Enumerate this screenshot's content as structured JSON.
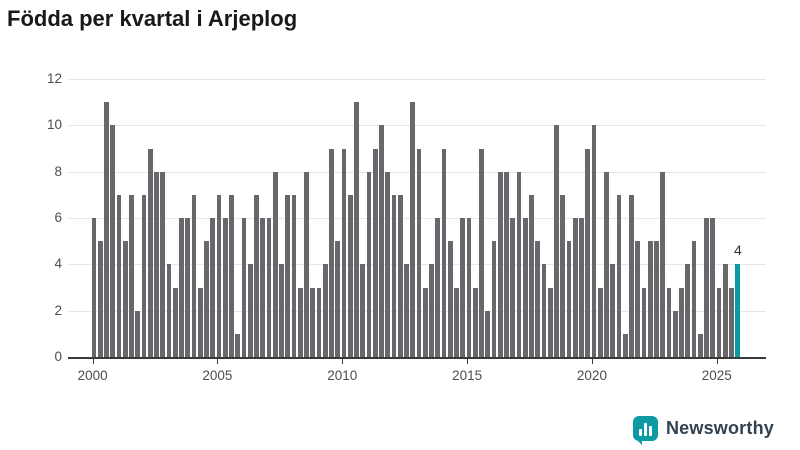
{
  "title": "Födda per kvartal i Arjeplog",
  "chart_data": {
    "type": "bar",
    "x_start": "2000-Q1",
    "x_end": "2025-Q4",
    "frequency": "quarterly",
    "x_tick_labels": [
      "2000",
      "2005",
      "2010",
      "2015",
      "2020",
      "2025"
    ],
    "y_ticks": [
      0,
      2,
      4,
      6,
      8,
      10,
      12
    ],
    "ylim": [
      0,
      12
    ],
    "grid": true,
    "legend": false,
    "bar_color": "#67686c",
    "highlight_color": "#0d9aa2",
    "series": [
      {
        "name": "Födda per kvartal",
        "values": [
          6,
          5,
          11,
          10,
          7,
          5,
          7,
          2,
          7,
          9,
          8,
          8,
          4,
          3,
          6,
          6,
          7,
          3,
          5,
          6,
          7,
          6,
          7,
          1,
          6,
          4,
          7,
          6,
          6,
          8,
          4,
          7,
          7,
          3,
          8,
          3,
          3,
          4,
          9,
          5,
          9,
          7,
          11,
          4,
          8,
          9,
          10,
          8,
          7,
          7,
          4,
          11,
          9,
          3,
          4,
          6,
          9,
          5,
          3,
          6,
          6,
          3,
          9,
          2,
          5,
          8,
          8,
          6,
          8,
          6,
          7,
          5,
          4,
          3,
          10,
          7,
          5,
          6,
          6,
          9,
          10,
          3,
          8,
          4,
          7,
          1,
          7,
          5,
          3,
          5,
          5,
          8,
          3,
          2,
          3,
          4,
          5,
          1,
          6,
          6,
          3,
          4,
          3,
          4
        ]
      }
    ],
    "highlight": {
      "index": 103,
      "period": "2025-Q4",
      "value": 4,
      "label": "4"
    }
  },
  "footer": {
    "logo_text": "Newsworthy"
  }
}
